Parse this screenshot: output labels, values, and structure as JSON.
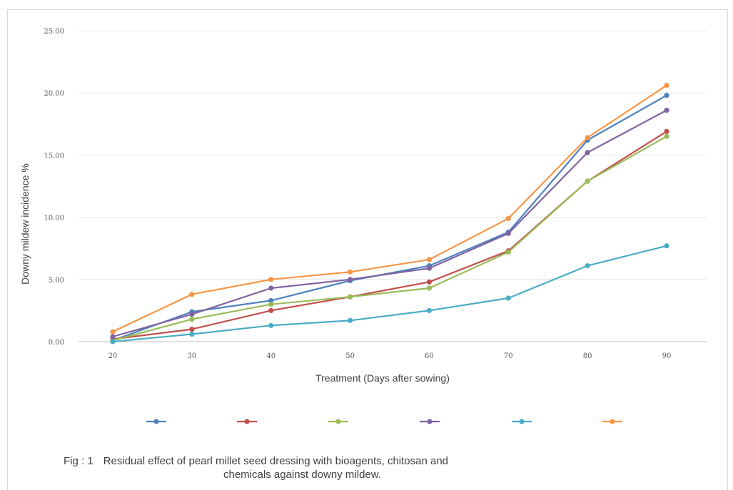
{
  "chart_data": {
    "type": "line",
    "title": "",
    "xlabel": "Treatment (Days after sowing)",
    "ylabel": "Downy mildew incidence %",
    "x": [
      20,
      30,
      40,
      50,
      60,
      70,
      80,
      90
    ],
    "x_tick_labels": [
      "20",
      "30",
      "40",
      "50",
      "60",
      "70",
      "80",
      "90"
    ],
    "y_tick_labels": [
      "0.00",
      "5.00",
      "10.00",
      "15.00",
      "20.00",
      "25.00"
    ],
    "ylim": [
      0,
      25
    ],
    "grid": true,
    "legend_position": "bottom",
    "series": [
      {
        "color": "#4F81BD",
        "values": [
          0.1,
          2.4,
          3.3,
          4.9,
          6.1,
          8.8,
          16.2,
          19.8
        ]
      },
      {
        "color": "#C0504D",
        "values": [
          0.2,
          1.0,
          2.5,
          3.6,
          4.8,
          7.3,
          12.9,
          16.9
        ]
      },
      {
        "color": "#9BBB59",
        "values": [
          0.1,
          1.8,
          3.0,
          3.6,
          4.3,
          7.2,
          12.9,
          16.5
        ]
      },
      {
        "color": "#8064A2",
        "values": [
          0.4,
          2.2,
          4.3,
          5.0,
          5.9,
          8.7,
          15.2,
          18.6
        ]
      },
      {
        "color": "#4BACC6",
        "values": [
          0.0,
          0.6,
          1.3,
          1.7,
          2.5,
          3.5,
          6.1,
          7.7
        ]
      },
      {
        "color": "#F79646",
        "values": [
          0.8,
          3.8,
          5.0,
          5.6,
          6.6,
          9.9,
          16.4,
          20.6
        ]
      }
    ]
  },
  "caption": {
    "fig_label": "Fig : 1",
    "line1": "Residual effect of pearl millet seed dressing with bioagents, chitosan and",
    "line2": "chemicals against downy mildew."
  }
}
